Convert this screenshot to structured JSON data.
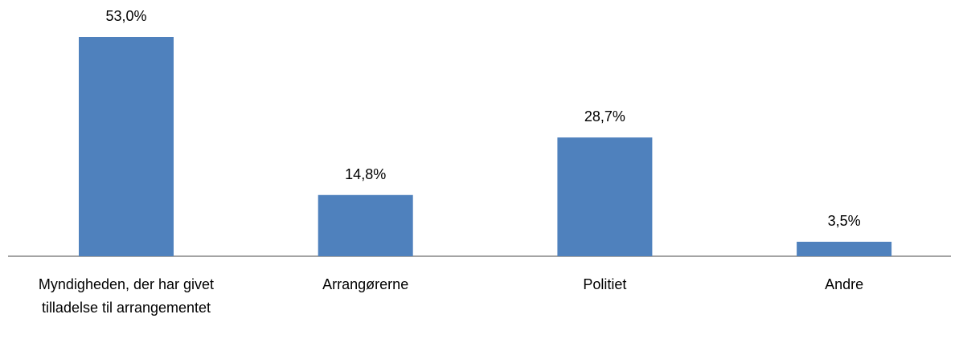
{
  "chart_data": {
    "type": "bar",
    "categories": [
      "Myndigheden, der har givet tilladelse til arrangementet",
      "Arrangørerne",
      "Politiet",
      "Andre"
    ],
    "values": [
      53.0,
      14.8,
      28.7,
      3.5
    ],
    "value_labels": [
      "53,0%",
      "14,8%",
      "28,7%",
      "3,5%"
    ],
    "color": "#4f81bd"
  }
}
